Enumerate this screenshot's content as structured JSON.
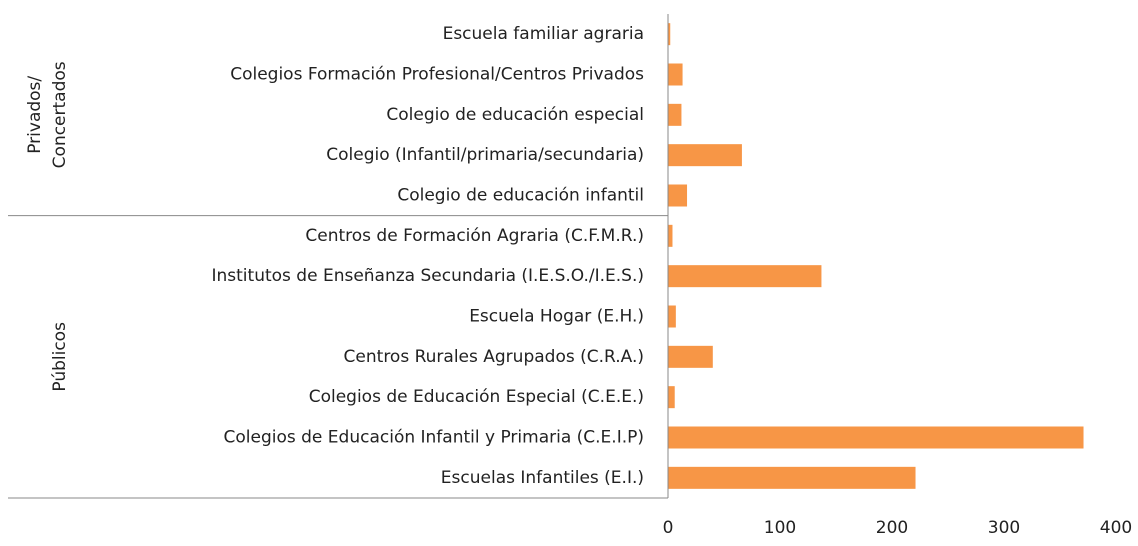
{
  "chart_data": {
    "type": "bar",
    "color": "#f79646",
    "groups": [
      {
        "name": [
          "Privados/",
          "Concertados"
        ],
        "categories": [
          "Escuela familiar agraria",
          "Colegios Formación Profesional/Centros Privados",
          "Colegio de educación especial",
          "Colegio (Infantil/primaria/secundaria)",
          "Colegio de educación infantil"
        ],
        "values": [
          2,
          13,
          12,
          66,
          17
        ]
      },
      {
        "name": [
          "Públicos"
        ],
        "categories": [
          "Centros de Formación Agraria (C.F.M.R.)",
          "Institutos de Enseñanza Secundaria (I.E.S.O./I.E.S.)",
          "Escuela Hogar (E.H.)",
          "Centros Rurales Agrupados (C.R.A.)",
          "Colegios de Educación Especial (C.E.E.)",
          "Colegios de Educación Infantil y Primaria (C.E.I.P)",
          "Escuelas Infantiles (E.I.)"
        ],
        "values": [
          4,
          137,
          7,
          40,
          6,
          371,
          221
        ]
      }
    ],
    "xlim": [
      0,
      400
    ],
    "xticks": [
      0,
      100,
      200,
      300,
      400
    ]
  }
}
